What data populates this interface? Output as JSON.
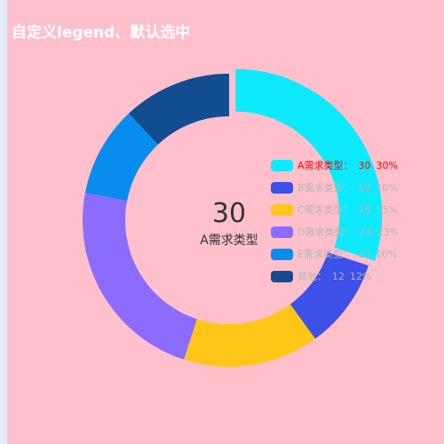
{
  "title": "自定义legend、默认选中",
  "center": {
    "value": "30",
    "label": "A需求类型"
  },
  "legend": {
    "label_suffix": "："
  },
  "colors": {
    "page_bg": "#e6ecf7",
    "chart_bg": "#ffc0cb",
    "selected_text": "#ff0000",
    "legend_text": "#b5b5b5",
    "center_text": "#333333",
    "title_text": "#ffffff"
  },
  "chart_data": {
    "type": "pie",
    "variant": "donut",
    "title": "自定义legend、默认选中",
    "selected": "A需求类型",
    "slices": [
      {
        "name": "A需求类型",
        "value": 30,
        "percent": "30%",
        "color": "#0deafe",
        "selected": true
      },
      {
        "name": "B需求类型",
        "value": 10,
        "percent": "10%",
        "color": "#3d50e8",
        "selected": false
      },
      {
        "name": "C需求类型",
        "value": 15,
        "percent": "15%",
        "color": "#ffc61a",
        "selected": false
      },
      {
        "name": "D需求类型",
        "value": 23,
        "percent": "23%",
        "color": "#8b6cfe",
        "selected": false
      },
      {
        "name": "E需求类型",
        "value": 10,
        "percent": "10%",
        "color": "#078ded",
        "selected": false
      },
      {
        "name": "其他",
        "value": 12,
        "percent": "12%",
        "color": "#124d8f",
        "selected": false
      }
    ],
    "legend_position": "right"
  }
}
